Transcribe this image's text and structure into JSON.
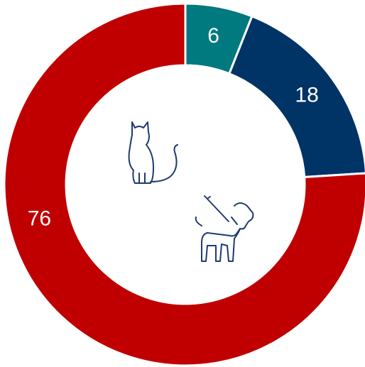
{
  "chart_data": {
    "type": "donut",
    "values": [
      6,
      18,
      76
    ],
    "colors": [
      "#00797f",
      "#003366",
      "#c00000"
    ]
  }
}
